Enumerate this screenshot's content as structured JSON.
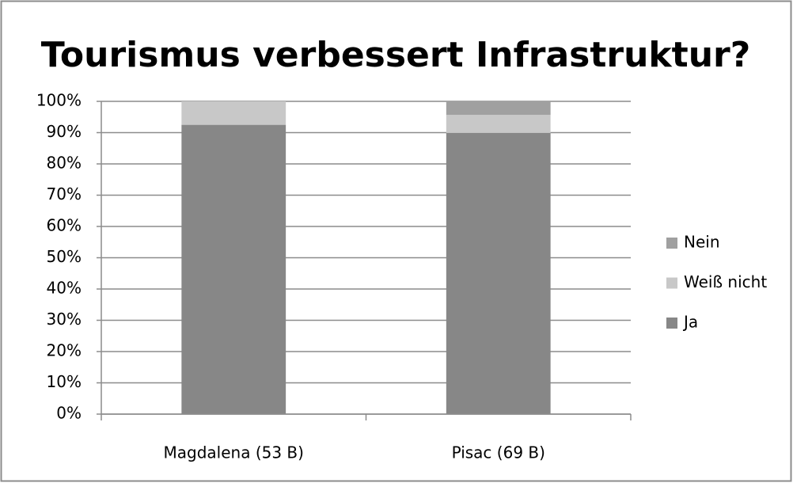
{
  "chart_data": {
    "type": "stacked_bar",
    "title": "Tourismus verbessert Infrastruktur?",
    "categories": [
      "Magdalena (53 B)",
      "Pisac (69 B)"
    ],
    "series": [
      {
        "name": "Ja",
        "color": "#878787",
        "values": [
          92.5,
          89.9
        ]
      },
      {
        "name": "Weiß nicht",
        "color": "#c8c8c8",
        "values": [
          7.5,
          5.8
        ]
      },
      {
        "name": "Nein",
        "color": "#a0a0a0",
        "values": [
          0,
          4.3
        ]
      }
    ],
    "ylim": [
      0,
      100
    ],
    "yticks": [
      {
        "value": 0,
        "label": "0%"
      },
      {
        "value": 10,
        "label": "10%"
      },
      {
        "value": 20,
        "label": "20%"
      },
      {
        "value": 30,
        "label": "30%"
      },
      {
        "value": 40,
        "label": "40%"
      },
      {
        "value": 50,
        "label": "50%"
      },
      {
        "value": 60,
        "label": "60%"
      },
      {
        "value": 70,
        "label": "70%"
      },
      {
        "value": 80,
        "label": "80%"
      },
      {
        "value": 90,
        "label": "90%"
      },
      {
        "value": 100,
        "label": "100%"
      }
    ],
    "grid": true,
    "legend": "right"
  }
}
